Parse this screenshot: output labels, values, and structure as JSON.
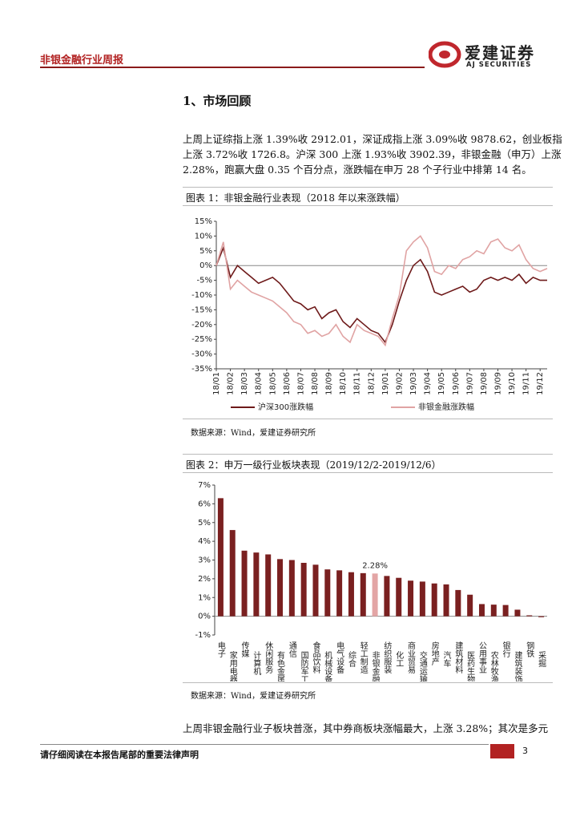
{
  "header": {
    "report_name": "非银金融行业周报",
    "logo_cn": "爱建证券",
    "logo_en": "AJ SECURITIES"
  },
  "section_title": "1、市场回顾",
  "paragraph": [
    "上周上证综指上涨 1.39%收 2912.01，深证成指上涨 3.09%收 9878.62，创业板指",
    "上涨 3.72%收 1726.8。沪深 300 上涨 1.93%收 3902.39，非银金融（申万）上涨",
    "2.28%，跑赢大盘 0.35 个百分点，涨跌幅在申万 28 个子行业中排第 14 名。"
  ],
  "chart_data": [
    {
      "type": "line",
      "title": "图表 1：非银金融行业表现（2018 年以来涨跌幅）",
      "source": "数据来源：Wind，爱建证券研究所",
      "categories": [
        "18/01",
        null,
        "18/02",
        null,
        "18/03",
        null,
        "18/04",
        null,
        "18/05",
        null,
        "18/06",
        null,
        "18/07",
        null,
        "18/08",
        null,
        "18/09",
        null,
        "18/10",
        null,
        "18/11",
        null,
        "18/12",
        null,
        "19/01",
        null,
        "19/02",
        null,
        "19/03",
        null,
        "19/04",
        null,
        "19/05",
        null,
        "19/06",
        null,
        "19/07",
        null,
        "19/08",
        null,
        "19/09",
        null,
        "19/10",
        null,
        "19/11",
        null,
        "19/12",
        null
      ],
      "series": [
        {
          "name": "沪深300涨跌幅",
          "color": "#6e1a1a",
          "values": [
            0,
            6,
            -4,
            0,
            -2,
            -4,
            -6,
            -5,
            -4,
            -6,
            -9,
            -12,
            -13,
            -15,
            -14,
            -18,
            -16,
            -15,
            -19,
            -21,
            -18,
            -20,
            -22,
            -23,
            -26,
            -20,
            -12,
            -5,
            0,
            2,
            -2,
            -9,
            -10,
            -9,
            -8,
            -7,
            -9,
            -8,
            -5,
            -4,
            -5,
            -4,
            -5,
            -3,
            -6,
            -4,
            -5,
            -5
          ]
        },
        {
          "name": "非银金融涨跌幅",
          "color": "#e0a3a3",
          "values": [
            0,
            8,
            -8,
            -5,
            -7,
            -9,
            -10,
            -11,
            -12,
            -14,
            -16,
            -19,
            -20,
            -23,
            -22,
            -24,
            -23,
            -20,
            -24,
            -26,
            -20,
            -22,
            -23,
            -24,
            -27,
            -18,
            -10,
            5,
            8,
            10,
            6,
            -2,
            -3,
            0,
            -1,
            2,
            3,
            5,
            4,
            8,
            9,
            6,
            5,
            7,
            2,
            -1,
            -2,
            -1
          ]
        }
      ],
      "ylim": [
        -35,
        15
      ],
      "yticks": [
        {
          "value": 15,
          "label": "15%"
        },
        {
          "value": 10,
          "label": "10%"
        },
        {
          "value": 5,
          "label": "5%"
        },
        {
          "value": 0,
          "label": "0%"
        },
        {
          "value": -5,
          "label": "-5%"
        },
        {
          "value": -10,
          "label": "-10%"
        },
        {
          "value": -15,
          "label": "-15%"
        },
        {
          "value": -20,
          "label": "-20%"
        },
        {
          "value": -25,
          "label": "-25%"
        },
        {
          "value": -30,
          "label": "-30%"
        },
        {
          "value": -35,
          "label": "-35%"
        }
      ],
      "legend": "bottom"
    },
    {
      "type": "bar",
      "title": "图表 2：申万一级行业板块表现（2019/12/2-2019/12/6）",
      "source": "数据来源：Wind，爱建证券研究所",
      "categories": [
        "电子",
        "家用电器",
        "传媒",
        "计算机",
        "休闲服务",
        "有色金属",
        "通信",
        "国防军工",
        "食品饮料",
        "机械设备",
        "电气设备",
        "综合",
        "轻工制造",
        "非银金融",
        "纺织服装",
        "化工",
        "商业贸易",
        "交通运输",
        "房地产",
        "汽车",
        "建筑材料",
        "医药生物",
        "公用事业",
        "农林牧渔",
        "银行",
        "建筑装饰",
        "钢铁",
        "采掘"
      ],
      "values": [
        6.3,
        4.6,
        3.5,
        3.4,
        3.3,
        3.05,
        3.0,
        2.85,
        2.75,
        2.5,
        2.45,
        2.35,
        2.3,
        2.28,
        2.15,
        2.05,
        1.9,
        1.85,
        1.75,
        1.7,
        1.4,
        1.15,
        0.65,
        0.62,
        0.6,
        0.35,
        0.05,
        -0.05
      ],
      "value_labels": [
        null,
        null,
        null,
        null,
        null,
        null,
        null,
        null,
        null,
        null,
        null,
        null,
        null,
        "2.28%",
        null,
        null,
        null,
        null,
        null,
        null,
        null,
        null,
        null,
        null,
        null,
        null,
        null,
        null
      ],
      "colors": [
        "#7a2020",
        "#7a2020",
        "#7a2020",
        "#7a2020",
        "#7a2020",
        "#7a2020",
        "#7a2020",
        "#7a2020",
        "#7a2020",
        "#7a2020",
        "#7a2020",
        "#7a2020",
        "#7a2020",
        "#e3a5a5",
        "#7a2020",
        "#7a2020",
        "#7a2020",
        "#7a2020",
        "#7a2020",
        "#7a2020",
        "#7a2020",
        "#7a2020",
        "#7a2020",
        "#7a2020",
        "#7a2020",
        "#7a2020",
        "#7a2020",
        "#7a2020"
      ],
      "ylim": [
        -1,
        7
      ],
      "yticks": [
        {
          "value": 7,
          "label": "7%"
        },
        {
          "value": 6,
          "label": "6%"
        },
        {
          "value": 5,
          "label": "5%"
        },
        {
          "value": 4,
          "label": "4%"
        },
        {
          "value": 3,
          "label": "3%"
        },
        {
          "value": 2,
          "label": "2%"
        },
        {
          "value": 1,
          "label": "1%"
        },
        {
          "value": 0,
          "label": "0%"
        },
        {
          "value": -1,
          "label": "-1%"
        }
      ]
    }
  ],
  "closing_paragraph": "上周非银金融行业子板块普涨，其中券商板块涨幅最大，上涨 3.28%；其次是多元",
  "footer": {
    "disclaimer": "请仔细阅读在本报告尾部的重要法律声明",
    "page": 3
  }
}
